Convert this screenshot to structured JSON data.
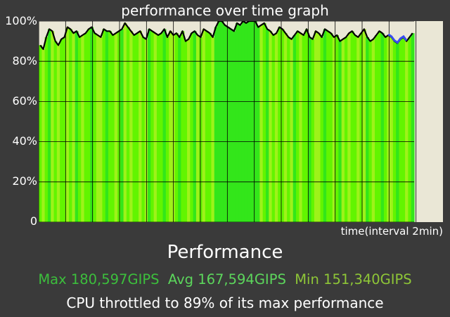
{
  "chart_data": {
    "type": "area",
    "title": "performance over time graph",
    "xlabel": "time(interval 2min)",
    "ylabel": "",
    "y_ticks": [
      "100%",
      "80%",
      "60%",
      "40%",
      "20%",
      "0"
    ],
    "ylim": [
      0,
      100
    ],
    "xlim": [
      0,
      30
    ],
    "grid": true,
    "series": [
      {
        "values": [
          88,
          86,
          92,
          96,
          95,
          90,
          88,
          91,
          92,
          97,
          96,
          94,
          95,
          92,
          93,
          94,
          96,
          97,
          94,
          93,
          92,
          96,
          95,
          95,
          93,
          94,
          95,
          96,
          99,
          97,
          95,
          93,
          94,
          95,
          92,
          91,
          96,
          95,
          94,
          93,
          94,
          96,
          92,
          95,
          93,
          94,
          92,
          95,
          90,
          91,
          94,
          95,
          93,
          92,
          96,
          95,
          94,
          92,
          97,
          100,
          100,
          98,
          97,
          96,
          95,
          99,
          98,
          100,
          99,
          100,
          100,
          100,
          97,
          98,
          99,
          96,
          95,
          93,
          94,
          97,
          96,
          94,
          92,
          91,
          93,
          95,
          94,
          93,
          96,
          92,
          91,
          95,
          94,
          92,
          96,
          95,
          94,
          92,
          93,
          90,
          91,
          92,
          94,
          95,
          93,
          92,
          94,
          96,
          92,
          90,
          91,
          93,
          95,
          94,
          92,
          93,
          92,
          90,
          89,
          91,
          92,
          90,
          92,
          94
        ]
      }
    ]
  },
  "colors": {
    "background": "#3a3a3a",
    "plot_background": "#eae7d6",
    "bar_green_bright": "#62f500",
    "bar_green_yellow": "#9ef21a",
    "bar_green_deep": "#33e61a",
    "line": "#000000",
    "max_text": "#3cbf3c",
    "avg_text": "#5cd65c",
    "min_text": "#8ec637"
  },
  "summary": {
    "title": "Performance",
    "max": "Max 180,597GIPS",
    "avg": "Avg 167,594GIPS",
    "min": "Min 151,340GIPS",
    "throttle": "CPU throttled to 89% of its max performance"
  }
}
